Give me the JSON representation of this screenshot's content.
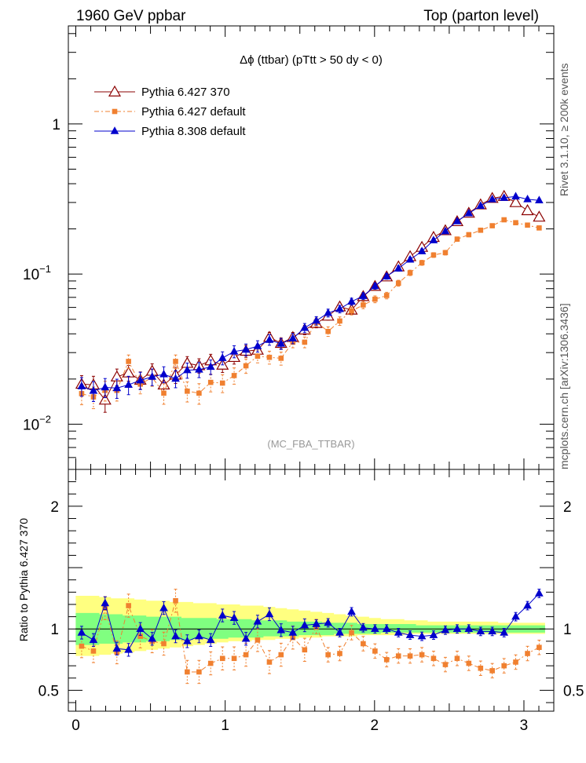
{
  "header": {
    "left": "1960 GeV ppbar",
    "right": "Top (parton level)"
  },
  "side_labels": {
    "top": "Rivet 3.1.10, ≥ 200k events",
    "bottom": "mcplots.cern.ch [arXiv:1306.3436]"
  },
  "chart_data": [
    {
      "type": "line",
      "title": "Δϕ (ttbar) (pTtt > 50 dy < 0)",
      "watermark": "(MC_FBA_TTBAR)",
      "yscale": "log",
      "xlim": [
        -0.05,
        3.2
      ],
      "ylim": [
        0.005,
        4.5
      ],
      "ytick_labels": [
        "10^-2",
        "10^-1",
        "1"
      ],
      "legend_position": "top-left",
      "x": [
        0.039,
        0.118,
        0.196,
        0.275,
        0.353,
        0.432,
        0.511,
        0.589,
        0.668,
        0.746,
        0.825,
        0.903,
        0.982,
        1.06,
        1.139,
        1.217,
        1.296,
        1.374,
        1.453,
        1.532,
        1.61,
        1.689,
        1.767,
        1.846,
        1.924,
        2.003,
        2.081,
        2.16,
        2.238,
        2.317,
        2.395,
        2.474,
        2.553,
        2.631,
        2.71,
        2.788,
        2.867,
        2.945,
        3.024,
        3.102
      ],
      "series": [
        {
          "name": "Pythia 6.427 370",
          "color": "#8b0000",
          "marker": "open-triangle",
          "line": "solid",
          "values": [
            0.0185,
            0.0183,
            0.0145,
            0.0207,
            0.022,
            0.0197,
            0.0226,
            0.0183,
            0.0213,
            0.0255,
            0.0246,
            0.0265,
            0.0248,
            0.0279,
            0.0307,
            0.0312,
            0.038,
            0.0346,
            0.0379,
            0.0425,
            0.047,
            0.0526,
            0.0606,
            0.0577,
            0.071,
            0.083,
            0.096,
            0.112,
            0.131,
            0.151,
            0.176,
            0.195,
            0.224,
            0.255,
            0.29,
            0.32,
            0.33,
            0.3,
            0.265,
            0.24
          ]
        },
        {
          "name": "Pythia 6.427 default",
          "color": "#f08030",
          "marker": "square",
          "line": "dash-dot",
          "values": [
            0.016,
            0.0152,
            0.0168,
            0.0168,
            0.0262,
            0.0185,
            0.0205,
            0.0161,
            0.0262,
            0.0166,
            0.0161,
            0.019,
            0.0188,
            0.0211,
            0.0245,
            0.0284,
            0.0279,
            0.0275,
            0.0352,
            0.0352,
            0.0479,
            0.0415,
            0.0487,
            0.0568,
            0.0623,
            0.068,
            0.072,
            0.087,
            0.102,
            0.119,
            0.134,
            0.139,
            0.171,
            0.183,
            0.196,
            0.21,
            0.23,
            0.22,
            0.212,
            0.203
          ]
        },
        {
          "name": "Pythia 8.308 default",
          "color": "#0000cc",
          "marker": "filled-triangle",
          "line": "solid",
          "values": [
            0.0179,
            0.0167,
            0.0176,
            0.0174,
            0.0183,
            0.0196,
            0.0207,
            0.0215,
            0.0201,
            0.0229,
            0.0231,
            0.0241,
            0.0276,
            0.0305,
            0.0314,
            0.0331,
            0.0365,
            0.0344,
            0.0373,
            0.0438,
            0.0489,
            0.0551,
            0.0585,
            0.0656,
            0.0715,
            0.0832,
            0.0966,
            0.109,
            0.125,
            0.142,
            0.168,
            0.193,
            0.225,
            0.254,
            0.285,
            0.315,
            0.322,
            0.329,
            0.315,
            0.31
          ]
        }
      ]
    },
    {
      "type": "line",
      "ylabel": "Ratio to Pythia 6.427 370",
      "xlim": [
        -0.05,
        3.2
      ],
      "ylim": [
        0.33,
        2.3
      ],
      "xtick_labels": [
        "0",
        "1",
        "2",
        "3"
      ],
      "ytick_labels": [
        "0.5",
        "1",
        "2"
      ],
      "reference_line": 1,
      "bands": {
        "outer_color": "#ffff80",
        "inner_color": "#80ff80",
        "outer_lower": [
          0.78,
          0.78,
          0.79,
          0.8,
          0.81,
          0.82,
          0.83,
          0.84,
          0.85,
          0.86,
          0.87,
          0.88,
          0.89,
          0.9,
          0.9,
          0.91,
          0.91,
          0.92,
          0.92,
          0.93,
          0.93,
          0.94,
          0.94,
          0.94,
          0.95,
          0.95,
          0.95,
          0.95,
          0.96,
          0.96,
          0.96,
          0.96,
          0.96,
          0.96,
          0.96,
          0.96,
          0.96,
          0.96,
          0.96,
          0.96
        ],
        "outer_upper": [
          1.27,
          1.27,
          1.26,
          1.25,
          1.25,
          1.24,
          1.23,
          1.23,
          1.22,
          1.22,
          1.21,
          1.21,
          1.2,
          1.2,
          1.19,
          1.19,
          1.18,
          1.17,
          1.16,
          1.15,
          1.14,
          1.13,
          1.12,
          1.11,
          1.1,
          1.09,
          1.08,
          1.08,
          1.07,
          1.07,
          1.06,
          1.06,
          1.06,
          1.06,
          1.06,
          1.06,
          1.05,
          1.05,
          1.05,
          1.05
        ],
        "inner_lower": [
          0.87,
          0.87,
          0.88,
          0.88,
          0.89,
          0.89,
          0.9,
          0.9,
          0.91,
          0.91,
          0.92,
          0.92,
          0.92,
          0.93,
          0.93,
          0.93,
          0.94,
          0.94,
          0.94,
          0.95,
          0.95,
          0.95,
          0.96,
          0.96,
          0.96,
          0.96,
          0.97,
          0.97,
          0.97,
          0.97,
          0.97,
          0.97,
          0.97,
          0.97,
          0.97,
          0.97,
          0.97,
          0.97,
          0.97,
          0.97
        ],
        "inner_upper": [
          1.13,
          1.13,
          1.12,
          1.12,
          1.11,
          1.11,
          1.1,
          1.1,
          1.1,
          1.09,
          1.09,
          1.09,
          1.08,
          1.08,
          1.08,
          1.07,
          1.07,
          1.07,
          1.06,
          1.06,
          1.06,
          1.05,
          1.05,
          1.05,
          1.04,
          1.04,
          1.04,
          1.04,
          1.04,
          1.03,
          1.03,
          1.03,
          1.03,
          1.03,
          1.03,
          1.03,
          1.03,
          1.03,
          1.03,
          1.03
        ]
      },
      "series": [
        {
          "name": "Pythia 6.427 default",
          "color": "#f08030",
          "marker": "square",
          "line": "dash-dot",
          "values": [
            0.86,
            0.82,
            1.17,
            0.81,
            1.19,
            0.94,
            0.9,
            0.88,
            1.23,
            0.65,
            0.65,
            0.72,
            0.76,
            0.76,
            0.79,
            0.91,
            0.73,
            0.79,
            0.93,
            0.83,
            1.02,
            0.79,
            0.8,
            0.97,
            0.88,
            0.82,
            0.75,
            0.78,
            0.78,
            0.79,
            0.76,
            0.71,
            0.76,
            0.72,
            0.68,
            0.66,
            0.7,
            0.73,
            0.8,
            0.85
          ]
        },
        {
          "name": "Pythia 8.308 default",
          "color": "#0000cc",
          "marker": "filled-triangle",
          "line": "solid",
          "values": [
            0.97,
            0.91,
            1.21,
            0.84,
            0.83,
            1.0,
            0.92,
            1.17,
            0.94,
            0.9,
            0.94,
            0.91,
            1.11,
            1.09,
            0.92,
            1.06,
            1.12,
            0.99,
            0.97,
            1.03,
            1.04,
            1.05,
            0.97,
            1.14,
            1.01,
            1.0,
            1.0,
            0.97,
            0.95,
            0.94,
            0.95,
            0.99,
            1.0,
            1.0,
            0.98,
            0.98,
            0.97,
            1.1,
            1.19,
            1.29
          ]
        }
      ]
    }
  ]
}
